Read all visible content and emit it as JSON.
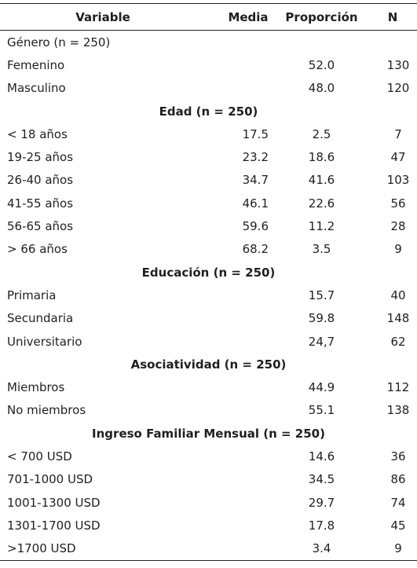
{
  "headers": {
    "variable": "Variable",
    "media": "Media",
    "proporcion": "Proporción",
    "n": "N"
  },
  "rows": [
    {
      "type": "label",
      "label": "Género (n = 250)",
      "media": "",
      "prop": "",
      "n": ""
    },
    {
      "type": "data",
      "label": "Femenino",
      "media": "",
      "prop": "52.0",
      "n": "130"
    },
    {
      "type": "data",
      "label": "Masculino",
      "media": "",
      "prop": "48.0",
      "n": "120"
    },
    {
      "type": "section",
      "label": "Edad (n = 250)"
    },
    {
      "type": "data",
      "label": "< 18 años",
      "media": "17.5",
      "prop": "2.5",
      "n": "7"
    },
    {
      "type": "data",
      "label": "19-25 años",
      "media": "23.2",
      "prop": "18.6",
      "n": "47"
    },
    {
      "type": "data",
      "label": "26-40 años",
      "media": "34.7",
      "prop": "41.6",
      "n": "103"
    },
    {
      "type": "data",
      "label": "41-55 años",
      "media": "46.1",
      "prop": "22.6",
      "n": "56"
    },
    {
      "type": "data",
      "label": "56-65 años",
      "media": "59.6",
      "prop": "11.2",
      "n": "28"
    },
    {
      "type": "data",
      "label": "> 66 años",
      "media": "68.2",
      "prop": "3.5",
      "n": "9"
    },
    {
      "type": "section",
      "label": "Educación (n = 250)"
    },
    {
      "type": "data",
      "label": "Primaria",
      "media": "",
      "prop": "15.7",
      "n": "40"
    },
    {
      "type": "data",
      "label": "Secundaria",
      "media": "",
      "prop": "59.8",
      "n": "148"
    },
    {
      "type": "data",
      "label": "Universitario",
      "media": "",
      "prop": "24,7",
      "n": "62"
    },
    {
      "type": "section",
      "label": "Asociatividad (n = 250)"
    },
    {
      "type": "data",
      "label": "Miembros",
      "media": "",
      "prop": "44.9",
      "n": "112"
    },
    {
      "type": "data",
      "label": "No miembros",
      "media": "",
      "prop": "55.1",
      "n": "138"
    },
    {
      "type": "section",
      "label": "Ingreso Familiar Mensual (n = 250)"
    },
    {
      "type": "data",
      "label": "< 700 USD",
      "media": "",
      "prop": "14.6",
      "n": "36"
    },
    {
      "type": "data",
      "label": "701-1000 USD",
      "media": "",
      "prop": "34.5",
      "n": "86"
    },
    {
      "type": "data",
      "label": "1001-1300 USD",
      "media": "",
      "prop": "29.7",
      "n": "74"
    },
    {
      "type": "data",
      "label": "1301-1700 USD",
      "media": "",
      "prop": "17.8",
      "n": "45"
    },
    {
      "type": "data",
      "label": ">1700 USD",
      "media": "",
      "prop": "3.4",
      "n": "9"
    }
  ]
}
